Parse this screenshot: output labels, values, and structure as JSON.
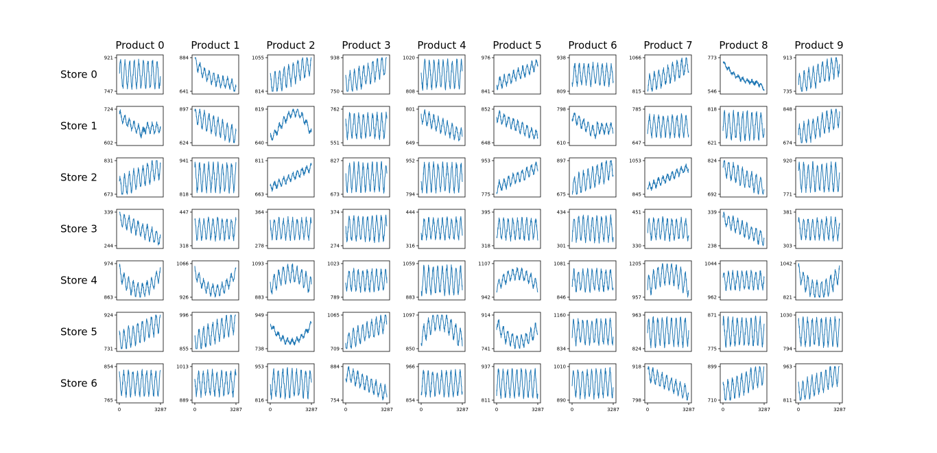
{
  "chart_data": {
    "type": "line",
    "layout": "small-multiples",
    "line_color": "#1f77b4",
    "column_titles": [
      "Product 0",
      "Product 1",
      "Product 2",
      "Product 3",
      "Product 4",
      "Product 5",
      "Product 6",
      "Product 7",
      "Product 8",
      "Product 9"
    ],
    "row_labels": [
      "Store 0",
      "Store 1",
      "Store 2",
      "Store 3",
      "Store 4",
      "Store 5",
      "Store 6"
    ],
    "x_range": [
      0,
      3287
    ],
    "x_ticks": [
      "0",
      "3287"
    ],
    "panels": [
      [
        {
          "ymin": 747,
          "ymax": 921,
          "trend": "flat",
          "amp": 0.8
        },
        {
          "ymin": 641,
          "ymax": 884,
          "trend": "decay",
          "amp": 0.3
        },
        {
          "ymin": 814,
          "ymax": 1055,
          "trend": "rise",
          "amp": 0.6
        },
        {
          "ymin": 750,
          "ymax": 938,
          "trend": "rise",
          "amp": 0.6
        },
        {
          "ymin": 808,
          "ymax": 1020,
          "trend": "flat",
          "amp": 0.8
        },
        {
          "ymin": 841,
          "ymax": 976,
          "trend": "rise",
          "amp": 0.3
        },
        {
          "ymin": 809,
          "ymax": 938,
          "trend": "flat",
          "amp": 0.6
        },
        {
          "ymin": 815,
          "ymax": 1066,
          "trend": "rise",
          "amp": 0.5
        },
        {
          "ymin": 546,
          "ymax": 773,
          "trend": "decay",
          "amp": 0.1
        },
        {
          "ymin": 735,
          "ymax": 913,
          "trend": "rise",
          "amp": 0.6
        }
      ],
      [
        {
          "ymin": 602,
          "ymax": 724,
          "trend": "u-fall",
          "amp": 0.3
        },
        {
          "ymin": 624,
          "ymax": 897,
          "trend": "fall",
          "amp": 0.5
        },
        {
          "ymin": 640,
          "ymax": 819,
          "trend": "hill-late",
          "amp": 0.2
        },
        {
          "ymin": 551,
          "ymax": 762,
          "trend": "flat",
          "amp": 0.7
        },
        {
          "ymin": 649,
          "ymax": 801,
          "trend": "fall",
          "amp": 0.4
        },
        {
          "ymin": 648,
          "ymax": 852,
          "trend": "fall",
          "amp": 0.3
        },
        {
          "ymin": 610,
          "ymax": 798,
          "trend": "u-fall",
          "amp": 0.3
        },
        {
          "ymin": 647,
          "ymax": 785,
          "trend": "flat",
          "amp": 0.6
        },
        {
          "ymin": 621,
          "ymax": 818,
          "trend": "flat",
          "amp": 0.8
        },
        {
          "ymin": 674,
          "ymax": 848,
          "trend": "rise",
          "amp": 0.6
        }
      ],
      [
        {
          "ymin": 673,
          "ymax": 831,
          "trend": "rise",
          "amp": 0.6
        },
        {
          "ymin": 818,
          "ymax": 941,
          "trend": "flat",
          "amp": 0.8
        },
        {
          "ymin": 663,
          "ymax": 811,
          "trend": "rise",
          "amp": 0.2
        },
        {
          "ymin": 673,
          "ymax": 827,
          "trend": "flat",
          "amp": 0.8
        },
        {
          "ymin": 794,
          "ymax": 952,
          "trend": "flat",
          "amp": 0.8
        },
        {
          "ymin": 775,
          "ymax": 953,
          "trend": "rise",
          "amp": 0.3
        },
        {
          "ymin": 675,
          "ymax": 897,
          "trend": "rise",
          "amp": 0.6
        },
        {
          "ymin": 845,
          "ymax": 1053,
          "trend": "rise",
          "amp": 0.2
        },
        {
          "ymin": 692,
          "ymax": 824,
          "trend": "fall",
          "amp": 0.5
        },
        {
          "ymin": 771,
          "ymax": 920,
          "trend": "flat",
          "amp": 0.8
        }
      ],
      [
        {
          "ymin": 244,
          "ymax": 339,
          "trend": "fall",
          "amp": 0.4
        },
        {
          "ymin": 318,
          "ymax": 447,
          "trend": "flat",
          "amp": 0.6
        },
        {
          "ymin": 278,
          "ymax": 364,
          "trend": "flat",
          "amp": 0.6
        },
        {
          "ymin": 274,
          "ymax": 374,
          "trend": "flat",
          "amp": 0.7
        },
        {
          "ymin": 316,
          "ymax": 444,
          "trend": "flat",
          "amp": 0.6
        },
        {
          "ymin": 318,
          "ymax": 395,
          "trend": "flat",
          "amp": 0.6
        },
        {
          "ymin": 301,
          "ymax": 434,
          "trend": "flat",
          "amp": 0.7
        },
        {
          "ymin": 330,
          "ymax": 451,
          "trend": "flat",
          "amp": 0.6
        },
        {
          "ymin": 238,
          "ymax": 339,
          "trend": "fall",
          "amp": 0.4
        },
        {
          "ymin": 303,
          "ymax": 381,
          "trend": "flat",
          "amp": 0.6
        }
      ],
      [
        {
          "ymin": 863,
          "ymax": 974,
          "trend": "u",
          "amp": 0.4
        },
        {
          "ymin": 926,
          "ymax": 1066,
          "trend": "u",
          "amp": 0.3
        },
        {
          "ymin": 883,
          "ymax": 1093,
          "trend": "hill",
          "amp": 0.5
        },
        {
          "ymin": 789,
          "ymax": 1023,
          "trend": "flat",
          "amp": 0.6
        },
        {
          "ymin": 883,
          "ymax": 1059,
          "trend": "flat",
          "amp": 0.8
        },
        {
          "ymin": 942,
          "ymax": 1107,
          "trend": "hill",
          "amp": 0.3
        },
        {
          "ymin": 846,
          "ymax": 1081,
          "trend": "flat",
          "amp": 0.6
        },
        {
          "ymin": 957,
          "ymax": 1205,
          "trend": "hill",
          "amp": 0.6
        },
        {
          "ymin": 962,
          "ymax": 1044,
          "trend": "flat",
          "amp": 0.5
        },
        {
          "ymin": 821,
          "ymax": 1042,
          "trend": "u",
          "amp": 0.5
        }
      ],
      [
        {
          "ymin": 731,
          "ymax": 924,
          "trend": "rise",
          "amp": 0.6
        },
        {
          "ymin": 855,
          "ymax": 996,
          "trend": "rise",
          "amp": 0.6
        },
        {
          "ymin": 738,
          "ymax": 949,
          "trend": "u",
          "amp": 0.15
        },
        {
          "ymin": 709,
          "ymax": 1065,
          "trend": "rise",
          "amp": 0.5
        },
        {
          "ymin": 850,
          "ymax": 1097,
          "trend": "hill-early",
          "amp": 0.5
        },
        {
          "ymin": 741,
          "ymax": 914,
          "trend": "u-early",
          "amp": 0.4
        },
        {
          "ymin": 834,
          "ymax": 1160,
          "trend": "flat",
          "amp": 0.7
        },
        {
          "ymin": 824,
          "ymax": 963,
          "trend": "flat",
          "amp": 0.8
        },
        {
          "ymin": 775,
          "ymax": 871,
          "trend": "flat",
          "amp": 0.8
        },
        {
          "ymin": 794,
          "ymax": 1030,
          "trend": "flat",
          "amp": 0.8
        }
      ],
      [
        {
          "ymin": 765,
          "ymax": 854,
          "trend": "flat",
          "amp": 0.7
        },
        {
          "ymin": 889,
          "ymax": 1013,
          "trend": "flat",
          "amp": 0.7
        },
        {
          "ymin": 816,
          "ymax": 953,
          "trend": "flat",
          "amp": 0.8
        },
        {
          "ymin": 754,
          "ymax": 884,
          "trend": "fall",
          "amp": 0.4
        },
        {
          "ymin": 854,
          "ymax": 966,
          "trend": "flat",
          "amp": 0.7
        },
        {
          "ymin": 811,
          "ymax": 937,
          "trend": "flat",
          "amp": 0.8
        },
        {
          "ymin": 890,
          "ymax": 1010,
          "trend": "flat",
          "amp": 0.8
        },
        {
          "ymin": 798,
          "ymax": 918,
          "trend": "fall",
          "amp": 0.4
        },
        {
          "ymin": 710,
          "ymax": 899,
          "trend": "rise",
          "amp": 0.6
        },
        {
          "ymin": 811,
          "ymax": 963,
          "trend": "rise",
          "amp": 0.6
        }
      ]
    ]
  }
}
